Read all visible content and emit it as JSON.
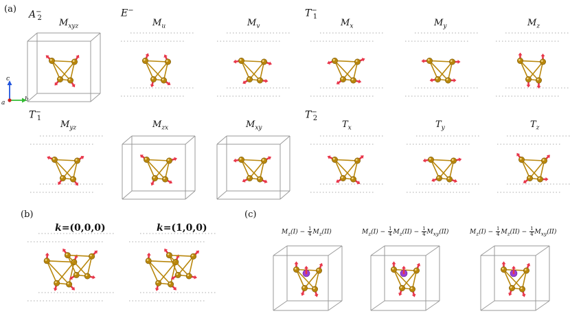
{
  "panels": {
    "a": "(a)",
    "b": "(b)",
    "c": "(c)"
  },
  "irreps": {
    "a2_minus": {
      "base": "A",
      "sub": "2",
      "sup": "−"
    },
    "e_minus": {
      "base": "E",
      "sup": "−"
    },
    "t1_minus_top": {
      "base": "T",
      "sub": "1",
      "sup": "−"
    },
    "t1_minus_bottom": {
      "base": "T",
      "sub": "1",
      "sup": "−"
    },
    "t2_minus": {
      "base": "T",
      "sub": "2",
      "sup": "−"
    }
  },
  "modes_top": [
    {
      "base": "M",
      "sub": "xyz"
    },
    {
      "base": "M",
      "sub": "u"
    },
    {
      "base": "M",
      "sub": "v"
    },
    {
      "base": "M",
      "sub": "x"
    },
    {
      "base": "M",
      "sub": "y"
    },
    {
      "base": "M",
      "sub": "z"
    }
  ],
  "modes_bottom": [
    {
      "base": "M",
      "sub": "yz"
    },
    {
      "base": "M",
      "sub": "zx"
    },
    {
      "base": "M",
      "sub": "xy"
    },
    {
      "base": "T",
      "sub": "x"
    },
    {
      "base": "T",
      "sub": "y"
    },
    {
      "base": "T",
      "sub": "z"
    }
  ],
  "axes": {
    "c": "c",
    "a": "a",
    "b": "b"
  },
  "k_labels": [
    {
      "k": "k",
      "value": "=(0,0,0)"
    },
    {
      "k": "k",
      "value": "=(1,0,0)"
    }
  ],
  "formulas": [
    {
      "t1": "M",
      "s1": "z",
      "p1": "(I) − ",
      "num": "1",
      "den": "4",
      "t2": "M",
      "s2": "z",
      "p2": "(II)",
      "extra": ""
    },
    {
      "t1": "M",
      "s1": "z",
      "p1": "(I) − ",
      "num": "1",
      "den": "4",
      "t2": "M",
      "s2": "z",
      "p2": "(II) − ",
      "num2": "1",
      "den2": "4",
      "t3": "M",
      "s3": "xy",
      "p3": "(II)"
    },
    {
      "t1": "M",
      "s1": "z",
      "p1": "(I) − ",
      "num": "1",
      "den": "4",
      "t2": "M",
      "s2": "z",
      "p2": "(II) − ",
      "num2": "1",
      "den2": "4",
      "t3": "M",
      "s3": "xy",
      "p3": "(II)"
    }
  ],
  "colors": {
    "atom": "#b8860b",
    "bond": "#b8860b",
    "arrow": "#e8364a",
    "central_atom": "#9b3fd6",
    "cell": "#aaaaaa",
    "axis_c": "#2255dd",
    "axis_b": "#33bb33",
    "axis_a": "#cc2222"
  }
}
